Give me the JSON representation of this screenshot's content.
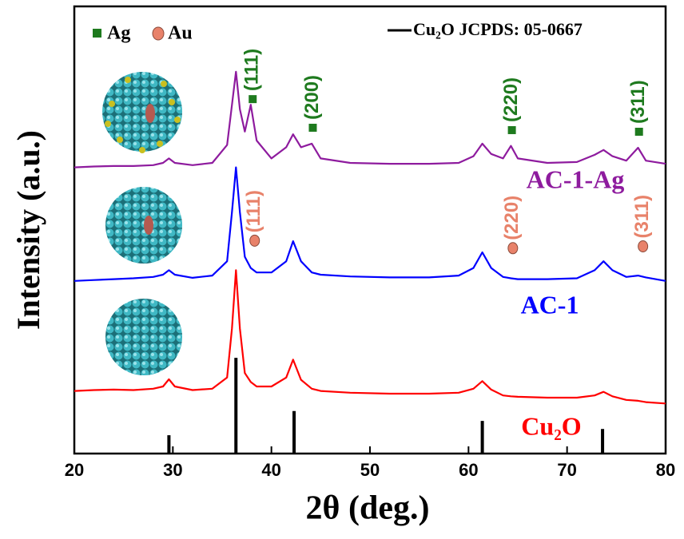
{
  "chart_data": {
    "type": "line",
    "x_label": "2θ (deg.)",
    "y_label": "Intensity (a.u.)",
    "xlim": [
      20,
      80
    ],
    "ylim": [
      0,
      100
    ],
    "xticks": [
      20,
      30,
      40,
      50,
      60,
      70,
      80
    ],
    "x": [
      20,
      22,
      24,
      26,
      28,
      29,
      29.6,
      30.2,
      32,
      34,
      35.5,
      36,
      36.4,
      36.8,
      37.3,
      37.9,
      38.5,
      40,
      41.5,
      42.2,
      43,
      44.1,
      45,
      48,
      52,
      56,
      59,
      60.5,
      61.4,
      62.3,
      63.5,
      64.3,
      65,
      68,
      71,
      72.8,
      73.7,
      74.6,
      76,
      77.2,
      78,
      80
    ],
    "series": [
      {
        "name": "Cu₂O",
        "color": "#ff0000",
        "values": [
          14,
          14.2,
          14.3,
          14.2,
          14.5,
          15,
          16.6,
          15,
          14.2,
          14.5,
          17,
          28,
          41,
          28,
          18,
          16,
          15,
          15,
          17,
          21,
          16.5,
          14.5,
          14,
          13.6,
          13.4,
          13.4,
          13.6,
          14.5,
          16.2,
          14.3,
          13,
          12.8,
          12.7,
          12.5,
          12.5,
          13,
          13.8,
          12.8,
          12,
          11.8,
          11.5,
          11.2
        ]
      },
      {
        "name": "AC-1",
        "color": "#0000ff",
        "values": [
          38.6,
          38.8,
          39,
          39.2,
          39.5,
          40,
          41,
          40,
          39.3,
          39.8,
          43,
          54,
          64,
          54,
          44,
          41.5,
          40.5,
          40.5,
          43,
          47.5,
          43,
          40.5,
          40,
          39.6,
          39.4,
          39.4,
          39.8,
          41.5,
          45,
          41.5,
          39.5,
          39.2,
          39,
          39,
          39.2,
          41,
          43,
          41,
          39.5,
          39.8,
          39.4,
          38.6
        ]
      },
      {
        "name": "AC-1-Ag",
        "color": "#8e1b9e",
        "values": [
          64,
          64.2,
          64.3,
          64.3,
          64.5,
          65,
          66,
          65,
          64.5,
          65,
          69,
          78,
          85.4,
          77,
          72,
          78,
          70,
          66,
          68.5,
          71.4,
          68.5,
          69.3,
          66,
          65,
          64.8,
          64.8,
          65,
          66.5,
          69.3,
          67,
          66,
          68.8,
          66,
          65,
          65.2,
          66.8,
          67.9,
          66.5,
          65.5,
          68.4,
          65.5,
          64.8
        ]
      }
    ],
    "reference": {
      "name": "Cu₂O JCPDS: 05-0667",
      "color": "#000000",
      "x": [
        29.6,
        36.4,
        42.3,
        61.4,
        73.6
      ],
      "values": [
        4.1,
        21.4,
        9.5,
        7.3,
        5.5
      ]
    },
    "phases": [
      {
        "name": "Ag",
        "color": "#1e7a1e",
        "x": [
          38.1,
          44.2,
          64.4,
          77.3
        ],
        "labels": [
          "(111)",
          "(200)",
          "(220)",
          "(311)"
        ]
      },
      {
        "name": "Au",
        "color": "#e8826a",
        "x": [
          38.3,
          64.5,
          77.7
        ],
        "labels": [
          "(111)",
          "(220)",
          "(311)"
        ]
      }
    ]
  }
}
